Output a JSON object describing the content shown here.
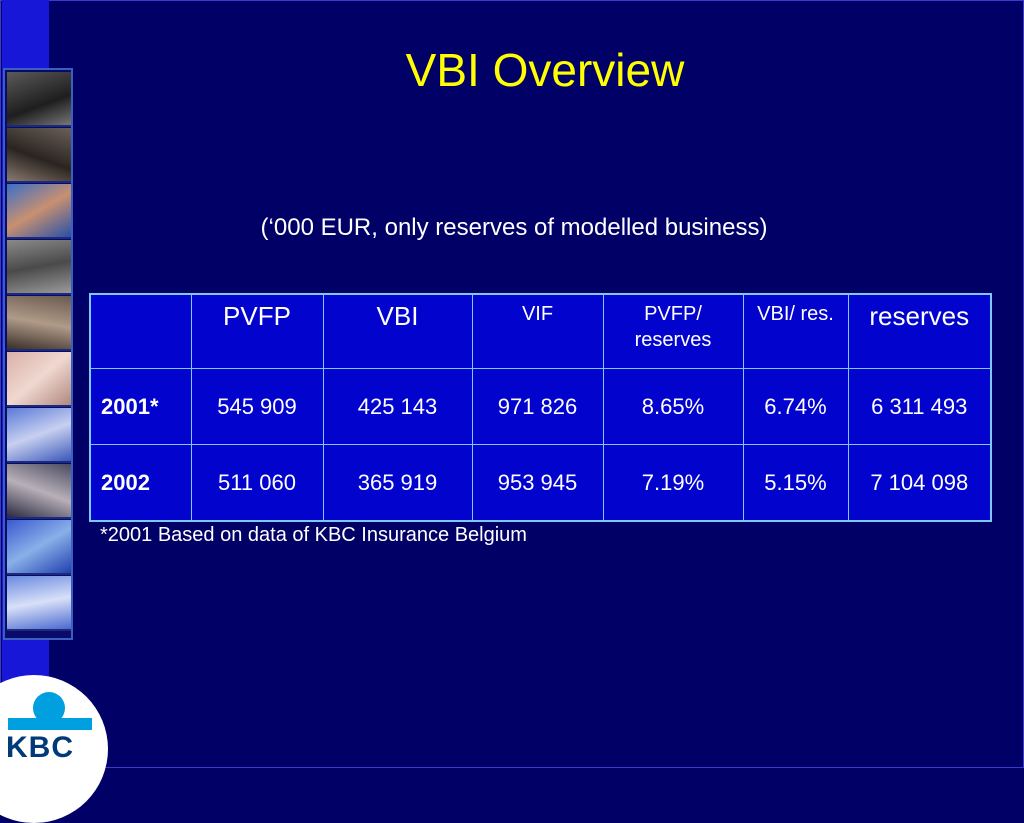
{
  "slide": {
    "title": "VBI Overview",
    "subtitle": "(‘000 EUR, only reserves of modelled business)",
    "footnote": "*2001 Based on data of KBC Insurance Belgium"
  },
  "table": {
    "headers": [
      "",
      "PVFP",
      "VBI",
      "VIF",
      "PVFP/ reserves",
      "VBI/ res.",
      "reserves"
    ],
    "rows": [
      {
        "label": "2001*",
        "cells": [
          "545 909",
          "425 143",
          "971 826",
          "8.65%",
          "6.74%",
          "6 311 493"
        ]
      },
      {
        "label": "2002",
        "cells": [
          "511 060",
          "365 919",
          "953 945",
          "7.19%",
          "5.15%",
          "7 104 098"
        ]
      }
    ]
  },
  "logo": {
    "text": "KBC"
  },
  "colors": {
    "background": "#010066",
    "title": "#ffff00",
    "table_fill": "#0303ce",
    "table_border": "#7fc8ff",
    "logo_blue": "#00a0e0"
  },
  "photo_strip": {
    "icons": [
      "photo-people-1",
      "photo-people-2",
      "photo-child",
      "photo-elderly-man",
      "photo-boy",
      "photo-family",
      "photo-woman",
      "photo-hands",
      "photo-man",
      "photo-baby"
    ]
  }
}
